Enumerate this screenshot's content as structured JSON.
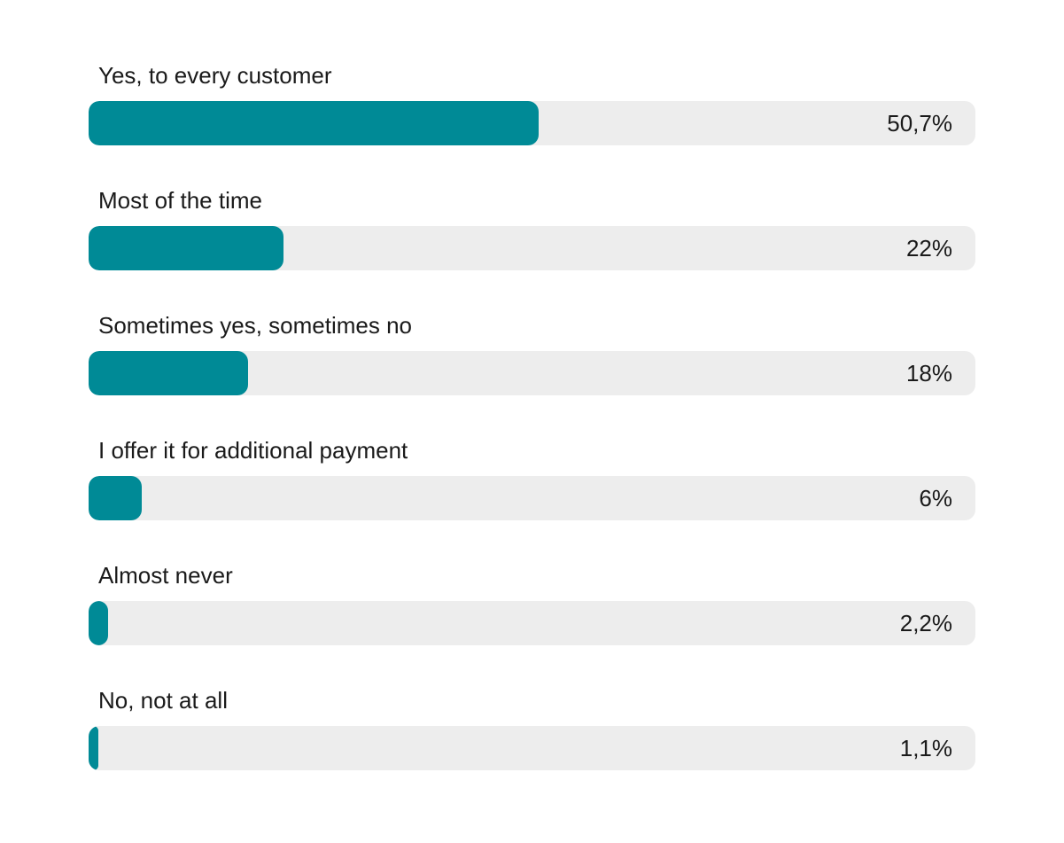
{
  "chart_data": {
    "type": "bar",
    "orientation": "horizontal",
    "categories": [
      "Yes, to every customer",
      "Most of the time",
      "Sometimes yes, sometimes no",
      "I offer it for additional payment",
      "Almost never",
      "No, not at all"
    ],
    "values": [
      50.7,
      22,
      18,
      6,
      2.2,
      1.1
    ],
    "value_labels": [
      "50,7%",
      "22%",
      "18%",
      "6%",
      "2,2%",
      "1,1%"
    ],
    "xlim": [
      0,
      100
    ],
    "unit": "%",
    "grid": false,
    "legend": "none",
    "title": "",
    "xlabel": "",
    "ylabel": ""
  },
  "colors": {
    "bar": "#008a96",
    "track": "#ededed",
    "text": "#1a1a1a"
  }
}
